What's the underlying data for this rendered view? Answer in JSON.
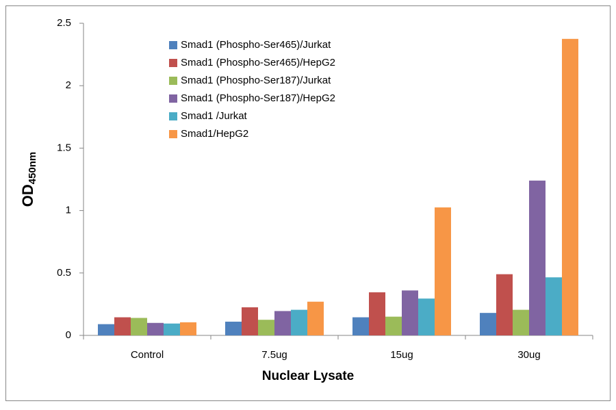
{
  "chart_data": {
    "type": "bar",
    "x_label": "Nuclear Lysate",
    "y_label": "OD",
    "y_label_subscript": "450nm",
    "categories": [
      "Control",
      "7.5ug",
      "15ug",
      "30ug"
    ],
    "series": [
      {
        "name": "Smad1 (Phospho-Ser465)/Jurkat",
        "color": "#4f81bd",
        "values": [
          0.09,
          0.11,
          0.145,
          0.18
        ]
      },
      {
        "name": "Smad1 (Phospho-Ser465)/HepG2",
        "color": "#c0504d",
        "values": [
          0.145,
          0.225,
          0.345,
          0.49
        ]
      },
      {
        "name": "Smad1 (Phospho-Ser187)/Jurkat",
        "color": "#9bbb59",
        "values": [
          0.14,
          0.125,
          0.15,
          0.205
        ]
      },
      {
        "name": "Smad1 (Phospho-Ser187)/HepG2",
        "color": "#8064a2",
        "values": [
          0.1,
          0.195,
          0.36,
          1.24
        ]
      },
      {
        "name": "Smad1 /Jurkat",
        "color": "#4bacc6",
        "values": [
          0.095,
          0.205,
          0.295,
          0.465
        ]
      },
      {
        "name": "Smad1/HepG2",
        "color": "#f79646",
        "values": [
          0.105,
          0.27,
          1.025,
          2.375
        ]
      }
    ],
    "ylim": [
      0,
      2.5
    ],
    "yticks": [
      0,
      0.5,
      1,
      1.5,
      2,
      2.5
    ],
    "grid": false,
    "legend": "top-left"
  }
}
